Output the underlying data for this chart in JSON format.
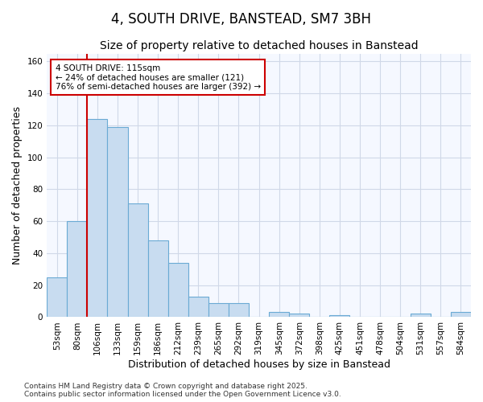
{
  "title": "4, SOUTH DRIVE, BANSTEAD, SM7 3BH",
  "subtitle": "Size of property relative to detached houses in Banstead",
  "xlabel": "Distribution of detached houses by size in Banstead",
  "ylabel": "Number of detached properties",
  "categories": [
    "53sqm",
    "80sqm",
    "106sqm",
    "133sqm",
    "159sqm",
    "186sqm",
    "212sqm",
    "239sqm",
    "265sqm",
    "292sqm",
    "319sqm",
    "345sqm",
    "372sqm",
    "398sqm",
    "425sqm",
    "451sqm",
    "478sqm",
    "504sqm",
    "531sqm",
    "557sqm",
    "584sqm"
  ],
  "values": [
    25,
    60,
    124,
    119,
    71,
    48,
    34,
    13,
    9,
    9,
    0,
    3,
    2,
    0,
    1,
    0,
    0,
    0,
    2,
    0,
    3
  ],
  "bar_color": "#c8dcf0",
  "bar_edge_color": "#6aaad4",
  "annotation_text": "4 SOUTH DRIVE: 115sqm\n← 24% of detached houses are smaller (121)\n76% of semi-detached houses are larger (392) →",
  "annotation_box_color": "white",
  "annotation_box_edge_color": "#cc0000",
  "vline_color": "#cc0000",
  "vline_x_index": 2,
  "ylim": [
    0,
    165
  ],
  "yticks": [
    0,
    20,
    40,
    60,
    80,
    100,
    120,
    140,
    160
  ],
  "footer_line1": "Contains HM Land Registry data © Crown copyright and database right 2025.",
  "footer_line2": "Contains public sector information licensed under the Open Government Licence v3.0.",
  "bg_color": "#ffffff",
  "plot_bg_color": "#f5f8ff",
  "title_fontsize": 12,
  "subtitle_fontsize": 10,
  "tick_fontsize": 7.5,
  "label_fontsize": 9,
  "annotation_fontsize": 7.5,
  "footer_fontsize": 6.5,
  "grid_color": "#d0d8e8"
}
